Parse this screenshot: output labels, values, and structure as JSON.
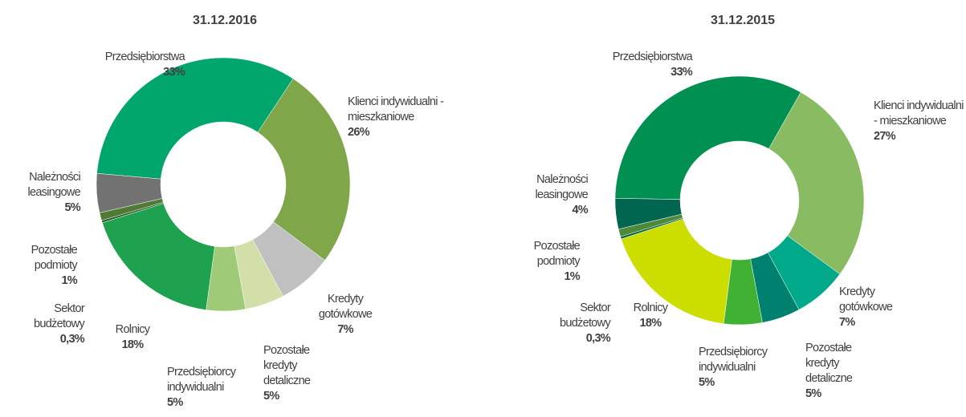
{
  "chart_data": [
    {
      "type": "pie",
      "title": "31.12.2016",
      "categories": [
        "Przedsiębiorstwa",
        "Klienci indywidualni - mieszkaniowe",
        "Kredyty gotówkowe",
        "Pozostałe kredyty detaliczne",
        "Przedsiębiorcy indywidualni",
        "Rolnicy",
        "Sektor budżetowy",
        "Pozostałe podmioty",
        "Należności leasingowe"
      ],
      "values": [
        33,
        26,
        7,
        5,
        5,
        18,
        0.3,
        1,
        5
      ],
      "value_labels": [
        "33%",
        "26%",
        "7%",
        "5%",
        "5%",
        "18%",
        "0,3%",
        "1%",
        "5%"
      ],
      "colors": [
        "#00a66b",
        "#80a64a",
        "#c0c0c0",
        "#d3dfa9",
        "#9fcb78",
        "#1ea250",
        "#2b5a2b",
        "#4f7a34",
        "#727272"
      ]
    },
    {
      "type": "pie",
      "title": "31.12.2015",
      "categories": [
        "Przedsiębiorstwa",
        "Klienci indywidualni - mieszkaniowe",
        "Kredyty gotówkowe",
        "Pozostałe kredyty detaliczne",
        "Przedsiębiorcy indywidualni",
        "Rolnicy",
        "Sektor budżetowy",
        "Pozostałe podmioty",
        "Należności leasingowe"
      ],
      "values": [
        33,
        27,
        7,
        5,
        5,
        18,
        0.3,
        1,
        4
      ],
      "value_labels": [
        "33%",
        "27%",
        "7%",
        "5%",
        "5%",
        "18%",
        "0,3%",
        "1%",
        "4%"
      ],
      "colors": [
        "#009152",
        "#88bb62",
        "#00a98a",
        "#00806f",
        "#40b133",
        "#ccdd00",
        "#005f3f",
        "#4c8a3a",
        "#006650"
      ]
    }
  ]
}
